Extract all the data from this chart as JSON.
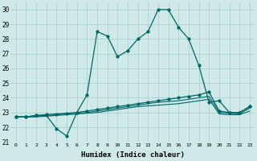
{
  "xlabel": "Humidex (Indice chaleur)",
  "background_color": "#cfe8e8",
  "grid_color": "#a8cccc",
  "line_color": "#006666",
  "xlim": [
    -0.5,
    23.5
  ],
  "ylim": [
    21,
    30.5
  ],
  "yticks": [
    21,
    22,
    23,
    24,
    25,
    26,
    27,
    28,
    29,
    30
  ],
  "xticks": [
    0,
    1,
    2,
    3,
    4,
    5,
    6,
    7,
    8,
    9,
    10,
    11,
    12,
    13,
    14,
    15,
    16,
    17,
    18,
    19,
    20,
    21,
    22,
    23
  ],
  "series1": [
    22.7,
    22.7,
    22.8,
    22.8,
    21.9,
    21.4,
    23.0,
    24.2,
    28.5,
    28.2,
    26.8,
    27.2,
    28.0,
    28.5,
    30.0,
    30.0,
    28.8,
    28.0,
    26.2,
    23.7,
    23.8,
    23.0,
    23.0,
    23.4
  ],
  "series2": [
    22.7,
    22.7,
    22.8,
    22.85,
    22.9,
    22.95,
    23.0,
    23.1,
    23.2,
    23.3,
    23.4,
    23.5,
    23.6,
    23.7,
    23.8,
    23.9,
    24.0,
    24.1,
    24.2,
    24.4,
    23.1,
    23.0,
    23.0,
    23.4
  ],
  "series3": [
    22.7,
    22.7,
    22.75,
    22.8,
    22.85,
    22.9,
    22.95,
    23.0,
    23.1,
    23.2,
    23.3,
    23.4,
    23.5,
    23.6,
    23.7,
    23.75,
    23.8,
    23.9,
    24.0,
    24.1,
    23.0,
    22.95,
    22.9,
    23.3
  ],
  "series4": [
    22.7,
    22.7,
    22.7,
    22.75,
    22.8,
    22.85,
    22.9,
    22.95,
    23.0,
    23.1,
    23.2,
    23.3,
    23.4,
    23.45,
    23.5,
    23.55,
    23.6,
    23.7,
    23.8,
    23.9,
    22.9,
    22.85,
    22.85,
    23.1
  ]
}
